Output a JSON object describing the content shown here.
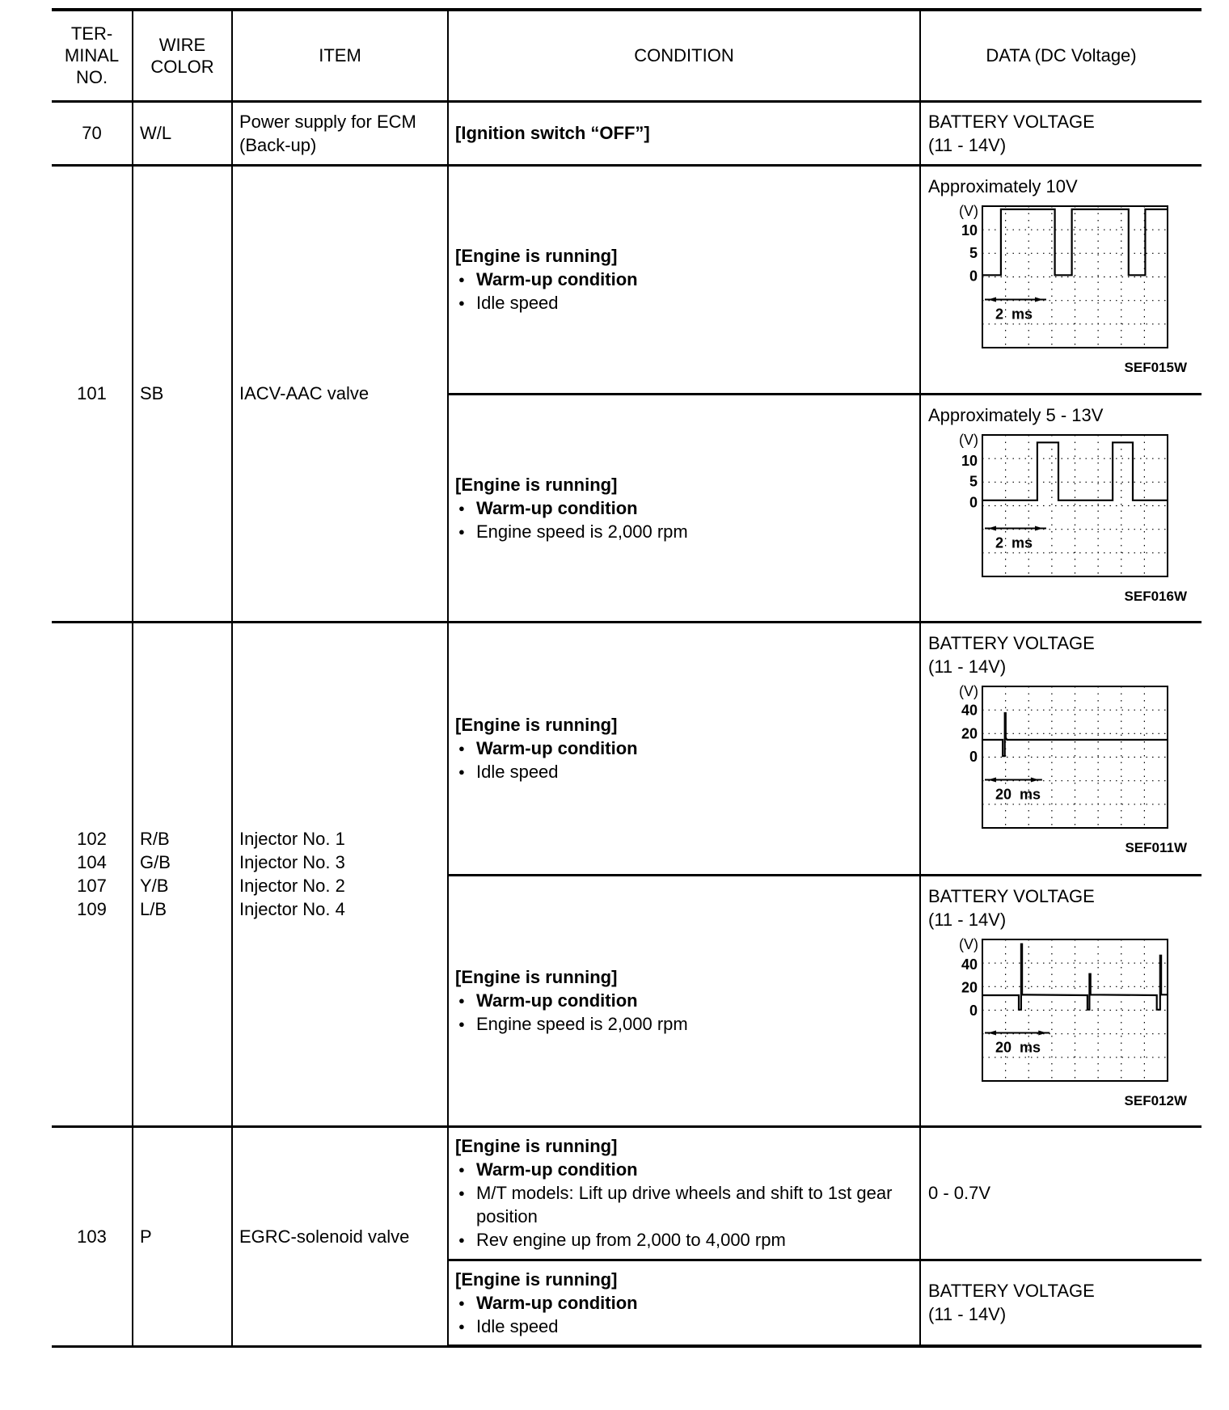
{
  "header": {
    "terminal": [
      "TER-",
      "MINAL",
      "NO."
    ],
    "wire": [
      "WIRE",
      "COLOR"
    ],
    "item": "ITEM",
    "condition": "CONDITION",
    "data": "DATA (DC Voltage)"
  },
  "rows": {
    "r70": {
      "terminal": "70",
      "wire": "W/L",
      "item": [
        "Power supply for ECM",
        "(Back-up)"
      ],
      "condition": "[Ignition switch “OFF”]",
      "data": [
        "BATTERY VOLTAGE",
        "(11 - 14V)"
      ]
    },
    "r101": {
      "terminal": "101",
      "wire": "SB",
      "item": "IACV-AAC valve",
      "a": {
        "title": "[Engine is running]",
        "bullets": [
          "Warm-up condition",
          "Idle speed"
        ],
        "data": "Approximately 10V"
      },
      "b": {
        "title": "[Engine is running]",
        "bullets": [
          "Warm-up condition",
          "Engine speed is 2,000 rpm"
        ],
        "data": "Approximately 5 - 13V"
      }
    },
    "r102": {
      "terminals": [
        "102",
        "104",
        "107",
        "109"
      ],
      "wires": [
        "R/B",
        "G/B",
        "Y/B",
        "L/B"
      ],
      "items": [
        "Injector No. 1",
        "Injector No. 3",
        "Injector No. 2",
        "Injector No. 4"
      ],
      "a": {
        "title": "[Engine is running]",
        "bullets": [
          "Warm-up condition",
          "Idle speed"
        ],
        "data": [
          "BATTERY VOLTAGE",
          "(11 - 14V)"
        ]
      },
      "b": {
        "title": "[Engine is running]",
        "bullets": [
          "Warm-up condition",
          "Engine speed is 2,000 rpm"
        ],
        "data": [
          "BATTERY VOLTAGE",
          "(11 - 14V)"
        ]
      }
    },
    "r103": {
      "terminal": "103",
      "wire": "P",
      "item": "EGRC-solenoid valve",
      "a": {
        "title": "[Engine is running]",
        "bullets": [
          "Warm-up condition",
          "M/T models: Lift up drive wheels and shift to 1st gear position",
          "Rev engine up from 2,000 to 4,000 rpm"
        ],
        "data": "0 - 0.7V"
      },
      "b": {
        "title": "[Engine is running]",
        "bullets": [
          "Warm-up condition",
          "Idle speed"
        ],
        "data": [
          "BATTERY VOLTAGE",
          "(11 - 14V)"
        ]
      }
    }
  },
  "waveforms": [
    {
      "code": "SEF015W",
      "unit": "(V)",
      "ticks": [
        10,
        5,
        0
      ],
      "scale_label": "2 ms",
      "scale_value": 2,
      "xlim": [
        0,
        5.8
      ],
      "ylim": [
        -16,
        15.2
      ],
      "points": [
        [
          0,
          0
        ],
        [
          0.58,
          0
        ],
        [
          0.58,
          14.5
        ],
        [
          2.27,
          14.5
        ],
        [
          2.27,
          0
        ],
        [
          2.8,
          0
        ],
        [
          2.8,
          14.5
        ],
        [
          4.58,
          14.5
        ],
        [
          4.58,
          0
        ],
        [
          5.1,
          0
        ],
        [
          5.1,
          14.5
        ],
        [
          5.8,
          14.5
        ]
      ]
    },
    {
      "code": "SEF016W",
      "unit": "(V)",
      "ticks": [
        10,
        5,
        0
      ],
      "scale_label": "2 ms",
      "scale_value": 2,
      "xlim": [
        0,
        5.8
      ],
      "ylim": [
        -18,
        16
      ],
      "points": [
        [
          0,
          0.3
        ],
        [
          1.72,
          0.3
        ],
        [
          1.72,
          14.2
        ],
        [
          2.38,
          14.2
        ],
        [
          2.38,
          0.3
        ],
        [
          4.08,
          0.3
        ],
        [
          4.08,
          14.2
        ],
        [
          4.71,
          14.2
        ],
        [
          4.71,
          0.3
        ],
        [
          5.8,
          0.3
        ]
      ]
    },
    {
      "code": "SEF011W",
      "unit": "(V)",
      "ticks": [
        40,
        20,
        0
      ],
      "scale_label": "20 ms",
      "scale_value": 20,
      "xlim": [
        0,
        62
      ],
      "ylim": [
        -62,
        60
      ],
      "points": [
        [
          0,
          14
        ],
        [
          6.8,
          14
        ],
        [
          6.8,
          0
        ],
        [
          7.5,
          0
        ],
        [
          7.5,
          37
        ],
        [
          7.8,
          37
        ],
        [
          7.8,
          16
        ],
        [
          8.2,
          14
        ],
        [
          62,
          14
        ]
      ]
    },
    {
      "code": "SEF012W",
      "unit": "(V)",
      "ticks": [
        40,
        20,
        0
      ],
      "scale_label": "20 ms",
      "scale_value": 20,
      "xlim": [
        0,
        55
      ],
      "ylim": [
        -62,
        61
      ],
      "points": [
        [
          0,
          12.5
        ],
        [
          10.8,
          12.5
        ],
        [
          10.8,
          0
        ],
        [
          11.5,
          0
        ],
        [
          11.5,
          57
        ],
        [
          11.8,
          57
        ],
        [
          11.8,
          13
        ],
        [
          31.2,
          12.5
        ],
        [
          31.2,
          0
        ],
        [
          31.8,
          0
        ],
        [
          31.8,
          31
        ],
        [
          32.1,
          31
        ],
        [
          32.1,
          13
        ],
        [
          51.8,
          12.5
        ],
        [
          51.8,
          0
        ],
        [
          52.8,
          0
        ],
        [
          52.8,
          47
        ],
        [
          53.1,
          47
        ],
        [
          53.1,
          13
        ],
        [
          55,
          13
        ]
      ]
    }
  ]
}
